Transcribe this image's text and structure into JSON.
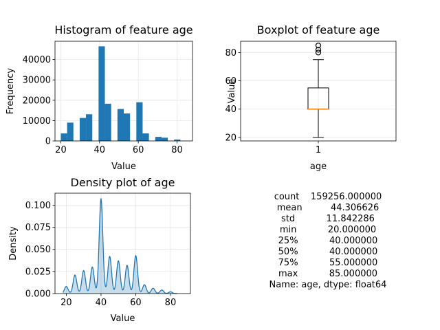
{
  "chart_data": [
    {
      "type": "bar",
      "title": "Histogram of feature age",
      "xlabel": "Value",
      "ylabel": "Frequency",
      "xlim": [
        17.0,
        88.0
      ],
      "ylim": [
        0,
        49000
      ],
      "xticks": [
        20,
        40,
        60,
        80
      ],
      "yticks": [
        0,
        10000,
        20000,
        30000,
        40000
      ],
      "grid": true,
      "bin_width": 3.25,
      "bins": [
        {
          "x0": 20.0,
          "x1": 23.25,
          "value": 3700
        },
        {
          "x0": 23.25,
          "x1": 26.5,
          "value": 9000
        },
        {
          "x0": 29.75,
          "x1": 33.0,
          "value": 11300
        },
        {
          "x0": 33.0,
          "x1": 36.25,
          "value": 13100
        },
        {
          "x0": 39.5,
          "x1": 42.75,
          "value": 46500
        },
        {
          "x0": 42.75,
          "x1": 46.0,
          "value": 18300
        },
        {
          "x0": 49.25,
          "x1": 52.5,
          "value": 15700
        },
        {
          "x0": 52.5,
          "x1": 55.75,
          "value": 13500
        },
        {
          "x0": 59.0,
          "x1": 62.25,
          "value": 19000
        },
        {
          "x0": 62.25,
          "x1": 65.5,
          "value": 3700
        },
        {
          "x0": 68.75,
          "x1": 72.0,
          "value": 2000
        },
        {
          "x0": 72.0,
          "x1": 75.25,
          "value": 1600
        },
        {
          "x0": 78.5,
          "x1": 81.75,
          "value": 700
        }
      ]
    },
    {
      "type": "box",
      "title": "Boxplot of feature age",
      "xlabel": "age",
      "ylabel": "Value",
      "xticks": [
        "1"
      ],
      "ylim": [
        17.5,
        88.0
      ],
      "yticks": [
        20,
        40,
        60,
        80
      ],
      "grid": true,
      "whisker_low": 20,
      "q1": 40,
      "median": 40,
      "q3": 55,
      "whisker_high": 75,
      "outliers": [
        80,
        82,
        85
      ]
    },
    {
      "type": "area",
      "title": "Density plot of age",
      "xlabel": "Value",
      "ylabel": "Density",
      "xlim": [
        13.5,
        91.5
      ],
      "ylim": [
        0,
        0.1135
      ],
      "xticks": [
        20,
        40,
        60,
        80
      ],
      "yticks": [
        0.0,
        0.025,
        0.05,
        0.075,
        0.1
      ],
      "grid": true,
      "peaks": [
        {
          "x": 20,
          "y": 0.008
        },
        {
          "x": 25,
          "y": 0.021
        },
        {
          "x": 30,
          "y": 0.026
        },
        {
          "x": 35,
          "y": 0.03
        },
        {
          "x": 40,
          "y": 0.107
        },
        {
          "x": 45,
          "y": 0.042
        },
        {
          "x": 50,
          "y": 0.037
        },
        {
          "x": 55,
          "y": 0.032
        },
        {
          "x": 60,
          "y": 0.043
        },
        {
          "x": 65,
          "y": 0.01
        },
        {
          "x": 70,
          "y": 0.006
        },
        {
          "x": 75,
          "y": 0.004
        },
        {
          "x": 80,
          "y": 0.002
        }
      ],
      "range": [
        18,
        84
      ]
    }
  ],
  "stats": {
    "rows": [
      {
        "label": "count",
        "value": "159256.000000"
      },
      {
        "label": "mean",
        "value": "44.306626"
      },
      {
        "label": "std",
        "value": "11.842286"
      },
      {
        "label": "min",
        "value": "20.000000"
      },
      {
        "label": "25%",
        "value": "40.000000"
      },
      {
        "label": "50%",
        "value": "40.000000"
      },
      {
        "label": "75%",
        "value": "55.000000"
      },
      {
        "label": "max",
        "value": "85.000000"
      }
    ],
    "footer": "Name: age, dtype: float64"
  },
  "colors": {
    "bar": "#1f77b4",
    "line": "#1f77b4",
    "fill": "#1f77b4",
    "median": "#ff7f0e",
    "grid": "#e6e6e6",
    "axis": "#000000"
  }
}
